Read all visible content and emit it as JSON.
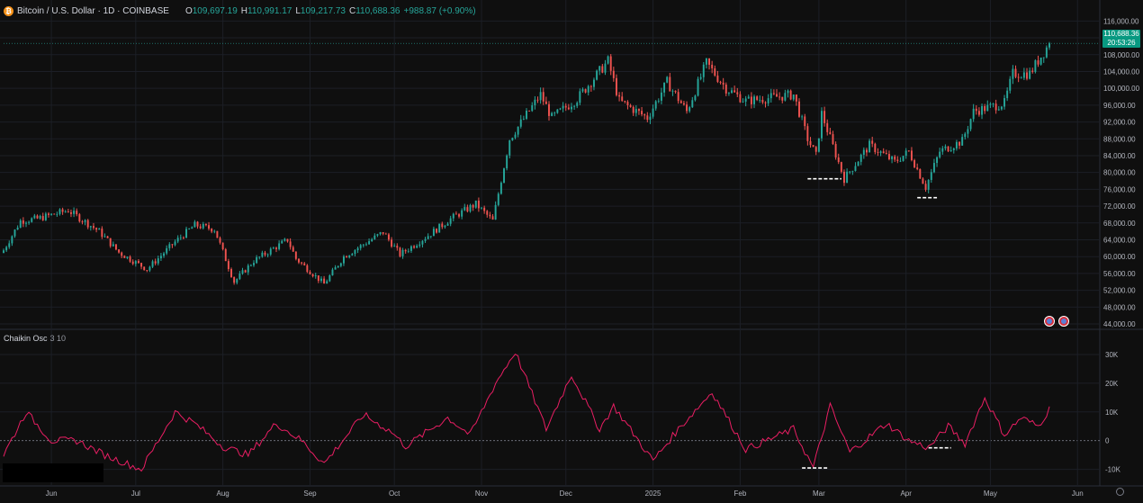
{
  "header": {
    "symbol": "Bitcoin / U.S. Dollar · 1D · COINBASE",
    "icon": "bitcoin-icon",
    "open_label": "O",
    "open": "109,697.19",
    "high_label": "H",
    "high": "110,991.17",
    "low_label": "L",
    "low": "109,217.73",
    "close_label": "C",
    "close": "110,688.36",
    "change": "+988.87 (+0.90%)"
  },
  "price_tag": {
    "price": "110,688.36",
    "countdown": "20:53:26",
    "color": "#089981"
  },
  "indicator": {
    "name": "Chaikin Osc",
    "params": "3 10"
  },
  "colors": {
    "up": "#26a69a",
    "down": "#ef5350",
    "oscillator": "#e91e63",
    "background": "#0f0f0f"
  },
  "chart_data": [
    {
      "type": "candlestick",
      "title": "",
      "y_ticks": [
        44000,
        48000,
        52000,
        56000,
        60000,
        64000,
        68000,
        72000,
        76000,
        80000,
        84000,
        88000,
        92000,
        96000,
        100000,
        104000,
        108000,
        112000,
        116000
      ],
      "y_tick_labels": [
        "44,000.00",
        "48,000.00",
        "52,000.00",
        "56,000.00",
        "60,000.00",
        "64,000.00",
        "68,000.00",
        "72,000.00",
        "76,000.00",
        "80,000.00",
        "84,000.00",
        "88,000.00",
        "92,000.00",
        "96,000.00",
        "100,000.00",
        "104,000.00",
        "108,000.00",
        "112,000.00",
        "116,000.00"
      ],
      "ylim": [
        44000,
        118000
      ],
      "x_tick_labels": [
        "Jun",
        "Jul",
        "Aug",
        "Sep",
        "Oct",
        "Nov",
        "Dec",
        "2025",
        "Feb",
        "Mar",
        "Apr",
        "May",
        "Jun"
      ],
      "x_tick_dates": [
        "2024-06-01",
        "2024-07-01",
        "2024-08-01",
        "2024-09-01",
        "2024-10-01",
        "2024-11-01",
        "2024-12-01",
        "2025-01-01",
        "2025-02-01",
        "2025-03-01",
        "2025-04-01",
        "2025-05-01",
        "2025-06-01"
      ],
      "start_date": "2024-05-15",
      "end_date": "2025-05-22",
      "close_anchors": [
        [
          "2024-05-15",
          61500
        ],
        [
          "2024-05-21",
          68500
        ],
        [
          "2024-05-27",
          69000
        ],
        [
          "2024-06-07",
          71000
        ],
        [
          "2024-06-18",
          66000
        ],
        [
          "2024-06-25",
          61000
        ],
        [
          "2024-07-05",
          57000
        ],
        [
          "2024-07-15",
          63500
        ],
        [
          "2024-07-22",
          67500
        ],
        [
          "2024-07-29",
          66500
        ],
        [
          "2024-08-05",
          54000
        ],
        [
          "2024-08-12",
          59000
        ],
        [
          "2024-08-24",
          64000
        ],
        [
          "2024-08-27",
          59500
        ],
        [
          "2024-09-06",
          53500
        ],
        [
          "2024-09-13",
          60000
        ],
        [
          "2024-09-27",
          65800
        ],
        [
          "2024-10-03",
          60500
        ],
        [
          "2024-10-14",
          65500
        ],
        [
          "2024-10-21",
          69000
        ],
        [
          "2024-10-30",
          72500
        ],
        [
          "2024-11-05",
          68500
        ],
        [
          "2024-11-11",
          88000
        ],
        [
          "2024-11-22",
          98500
        ],
        [
          "2024-11-26",
          93000
        ],
        [
          "2024-12-05",
          97500
        ],
        [
          "2024-12-16",
          106500
        ],
        [
          "2024-12-20",
          97000
        ],
        [
          "2024-12-30",
          93000
        ],
        [
          "2025-01-06",
          101500
        ],
        [
          "2025-01-13",
          94500
        ],
        [
          "2025-01-20",
          106000
        ],
        [
          "2025-01-27",
          100000
        ],
        [
          "2025-02-03",
          97000
        ],
        [
          "2025-02-20",
          98500
        ],
        [
          "2025-02-25",
          88000
        ],
        [
          "2025-02-28",
          84000
        ],
        [
          "2025-03-02",
          94000
        ],
        [
          "2025-03-10",
          78500
        ],
        [
          "2025-03-19",
          86500
        ],
        [
          "2025-03-28",
          82500
        ],
        [
          "2025-04-02",
          85000
        ],
        [
          "2025-04-08",
          76500
        ],
        [
          "2025-04-13",
          85000
        ],
        [
          "2025-04-21",
          87500
        ],
        [
          "2025-04-25",
          94500
        ],
        [
          "2025-05-06",
          96500
        ],
        [
          "2025-05-09",
          103500
        ],
        [
          "2025-05-15",
          103500
        ],
        [
          "2025-05-22",
          110688
        ]
      ]
    },
    {
      "type": "line",
      "title": "",
      "series": [
        {
          "values_anchor": [
            [
              "2024-05-15",
              -5000
            ],
            [
              "2024-05-23",
              10000
            ],
            [
              "2024-06-01",
              0
            ],
            [
              "2024-06-10",
              0
            ],
            [
              "2024-06-20",
              -5000
            ],
            [
              "2024-07-03",
              -10000
            ],
            [
              "2024-07-15",
              10000
            ],
            [
              "2024-07-22",
              6000
            ],
            [
              "2024-08-01",
              -2000
            ],
            [
              "2024-08-10",
              -5000
            ],
            [
              "2024-08-20",
              6000
            ],
            [
              "2024-08-29",
              0
            ],
            [
              "2024-09-06",
              -8000
            ],
            [
              "2024-09-20",
              9000
            ],
            [
              "2024-09-30",
              3000
            ],
            [
              "2024-10-05",
              -2000
            ],
            [
              "2024-10-20",
              8000
            ],
            [
              "2024-10-28",
              2000
            ],
            [
              "2024-11-06",
              20000
            ],
            [
              "2024-11-13",
              31000
            ],
            [
              "2024-11-24",
              4000
            ],
            [
              "2024-12-03",
              23000
            ],
            [
              "2024-12-13",
              4000
            ],
            [
              "2024-12-18",
              12000
            ],
            [
              "2025-01-01",
              -7000
            ],
            [
              "2025-01-10",
              4000
            ],
            [
              "2025-01-22",
              17000
            ],
            [
              "2025-02-03",
              -3000
            ],
            [
              "2025-02-20",
              4000
            ],
            [
              "2025-02-27",
              -9500
            ],
            [
              "2025-03-05",
              12000
            ],
            [
              "2025-03-12",
              -4000
            ],
            [
              "2025-03-25",
              6000
            ],
            [
              "2025-04-02",
              0
            ],
            [
              "2025-04-09",
              -2500
            ],
            [
              "2025-04-16",
              5000
            ],
            [
              "2025-04-22",
              -1000
            ],
            [
              "2025-04-29",
              15000
            ],
            [
              "2025-05-06",
              2000
            ],
            [
              "2025-05-12",
              8000
            ],
            [
              "2025-05-18",
              5000
            ],
            [
              "2025-05-22",
              11000
            ]
          ]
        }
      ],
      "y_ticks": [
        -10000,
        0,
        10000,
        20000,
        30000
      ],
      "y_tick_labels": [
        "-10K",
        "0",
        "10K",
        "20K",
        "30K"
      ],
      "ylim": [
        -12000,
        35000
      ],
      "zero_line": true
    }
  ],
  "annotations": [
    {
      "panel": "price",
      "date_from": "2025-02-25",
      "date_to": "2025-03-09",
      "value": 78500
    },
    {
      "panel": "price",
      "date_from": "2025-04-05",
      "date_to": "2025-04-12",
      "value": 74000
    },
    {
      "panel": "oscillator",
      "date_from": "2025-02-23",
      "date_to": "2025-03-04",
      "value": -9500
    },
    {
      "panel": "oscillator",
      "date_from": "2025-04-09",
      "date_to": "2025-04-17",
      "value": -2500
    }
  ]
}
